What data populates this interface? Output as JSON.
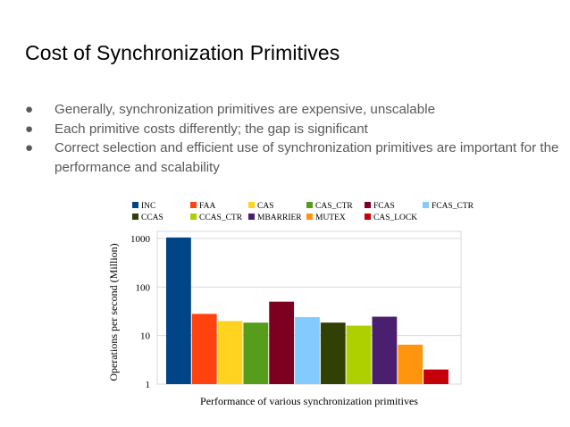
{
  "slide": {
    "title": "Cost of Synchronization Primitives",
    "bullets": [
      {
        "icon": "bullet-dot",
        "text": "Generally, synchronization primitives are expensive, unscalable"
      },
      {
        "icon": "bullet-dot",
        "text": "Each primitive costs differently; the gap is significant"
      },
      {
        "icon": "bullet-dot",
        "text": "Correct selection and efficient use of synchronization primitives are important for the performance and scalability"
      }
    ],
    "bullet_glyph": "●"
  },
  "chart_data": {
    "type": "bar",
    "title": "",
    "xlabel": "Performance of various synchronization primitives",
    "ylabel": "Operations per second (Million)",
    "yscale": "log",
    "ylim": [
      1,
      1000
    ],
    "yticks": [
      "1",
      "10",
      "100",
      "1000"
    ],
    "ytick_values": [
      1,
      10,
      100,
      1000
    ],
    "grid": true,
    "legend_position": "top",
    "series": [
      {
        "name": "INC",
        "value": 1050,
        "color": "#004586"
      },
      {
        "name": "FAA",
        "value": 28,
        "color": "#ff420e"
      },
      {
        "name": "CAS",
        "value": 20,
        "color": "#ffd320"
      },
      {
        "name": "CAS_CTR",
        "value": 18.5,
        "color": "#579d1c"
      },
      {
        "name": "FCAS",
        "value": 50,
        "color": "#7e0021"
      },
      {
        "name": "FCAS_CTR",
        "value": 24,
        "color": "#83caff"
      },
      {
        "name": "CCAS",
        "value": 18.5,
        "color": "#314004"
      },
      {
        "name": "CCAS_CTR",
        "value": 16,
        "color": "#aecf00"
      },
      {
        "name": "MBARRIER",
        "value": 24.5,
        "color": "#4b1f6f"
      },
      {
        "name": "MUTEX",
        "value": 6.5,
        "color": "#ff950e"
      },
      {
        "name": "CAS_LOCK",
        "value": 2,
        "color": "#c5000b"
      }
    ],
    "legend_rows": [
      [
        "INC",
        "FAA",
        "CAS",
        "CAS_CTR",
        "FCAS",
        "FCAS_CTR"
      ],
      [
        "CCAS",
        "CCAS_CTR",
        "MBARRIER",
        "MUTEX",
        "CAS_LOCK"
      ]
    ]
  }
}
